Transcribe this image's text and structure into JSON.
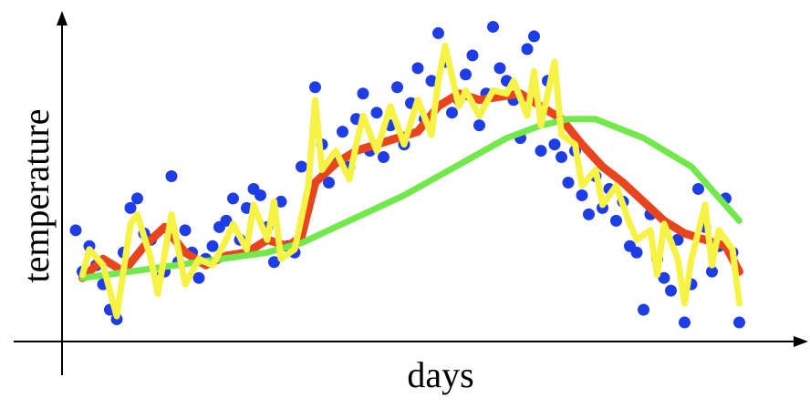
{
  "chart_data": {
    "type": "scatter",
    "x_label": "days",
    "y_label": "temperature",
    "xlim": [
      0,
      109
    ],
    "ylim": [
      0,
      104
    ],
    "series": [
      {
        "style": "points",
        "color": "#1f3de6",
        "x": [
          2,
          3,
          4,
          5,
          6,
          7,
          8,
          9,
          10,
          11,
          12,
          13,
          14,
          15,
          16,
          17,
          18,
          19,
          20,
          21,
          22,
          23,
          24,
          25,
          26,
          27,
          28,
          29,
          30,
          31,
          32,
          33,
          34,
          35,
          36,
          37,
          38,
          39,
          40,
          41,
          42,
          43,
          44,
          45,
          46,
          47,
          48,
          49,
          50,
          51,
          52,
          53,
          54,
          55,
          56,
          57,
          58,
          59,
          60,
          61,
          62,
          63,
          64,
          65,
          66,
          67,
          68,
          69,
          70,
          71,
          72,
          73,
          74,
          75,
          76,
          77,
          78,
          79,
          80,
          81,
          82,
          83,
          84,
          85,
          86,
          87,
          88,
          89,
          90,
          91,
          92,
          93,
          94,
          95,
          96,
          97,
          98,
          99
        ],
        "values": [
          35,
          22,
          30,
          24,
          18,
          10,
          7,
          28,
          42,
          45,
          34,
          32,
          20,
          22,
          52,
          25,
          35,
          28,
          20,
          26,
          30,
          36,
          38,
          45,
          32,
          42,
          48,
          46,
          36,
          25,
          44,
          30,
          28,
          55,
          45,
          80,
          62,
          50,
          58,
          66,
          55,
          70,
          78,
          60,
          72,
          58,
          68,
          80,
          62,
          75,
          86,
          70,
          82,
          97,
          88,
          72,
          76,
          84,
          90,
          68,
          78,
          99,
          86,
          82,
          76,
          64,
          92,
          96,
          60,
          82,
          62,
          58,
          50,
          60,
          46,
          40,
          52,
          42,
          48,
          38,
          44,
          30,
          28,
          10,
          40,
          26,
          20,
          16,
          32,
          6,
          18,
          48,
          36,
          22,
          30,
          45,
          28,
          6
        ]
      },
      {
        "style": "line",
        "color": "#e8451e",
        "x": [
          3,
          6,
          9,
          12,
          15,
          18,
          21,
          24,
          27,
          30,
          33,
          35,
          37,
          40,
          43,
          46,
          49,
          52,
          55,
          58,
          61,
          64,
          67,
          70,
          73,
          76,
          79,
          82,
          85,
          88,
          91,
          94,
          97,
          99
        ],
        "values": [
          20,
          26,
          22,
          30,
          36,
          28,
          24,
          27,
          28,
          32,
          30,
          33,
          50,
          56,
          60,
          62,
          64,
          66,
          74,
          78,
          76,
          77,
          78,
          74,
          70,
          62,
          55,
          50,
          44,
          38,
          34,
          32,
          30,
          22
        ]
      },
      {
        "style": "line",
        "color": "#72e84c",
        "x": [
          3,
          10,
          20,
          30,
          35,
          40,
          45,
          50,
          55,
          60,
          65,
          70,
          74,
          78,
          85,
          92,
          99
        ],
        "values": [
          20,
          22,
          25,
          28,
          31,
          36,
          41,
          46,
          52,
          58,
          64,
          68,
          70,
          70,
          64,
          55,
          38
        ]
      },
      {
        "style": "line",
        "color": "#f7f246",
        "x": [
          3,
          4,
          6,
          8,
          10,
          11,
          13,
          14,
          16,
          18,
          20,
          22,
          24,
          25,
          27,
          28,
          30,
          31,
          32,
          34,
          36,
          37,
          38,
          40,
          42,
          43,
          44,
          46,
          48,
          50,
          52,
          54,
          55,
          56,
          58,
          59,
          61,
          63,
          65,
          66,
          68,
          69,
          70,
          72,
          73,
          75,
          76,
          78,
          79,
          81,
          83,
          84,
          86,
          87,
          88,
          90,
          91,
          92,
          94,
          95,
          96,
          98,
          99
        ],
        "values": [
          21,
          29,
          24,
          8,
          37,
          40,
          26,
          15,
          40,
          18,
          26,
          24,
          32,
          37,
          29,
          43,
          32,
          44,
          26,
          29,
          49,
          76,
          54,
          60,
          51,
          62,
          71,
          60,
          74,
          62,
          76,
          65,
          82,
          93,
          74,
          79,
          71,
          79,
          78,
          82,
          71,
          85,
          68,
          88,
          65,
          62,
          49,
          54,
          43,
          49,
          37,
          32,
          35,
          21,
          37,
          26,
          12,
          26,
          43,
          24,
          35,
          29,
          12
        ]
      }
    ]
  }
}
